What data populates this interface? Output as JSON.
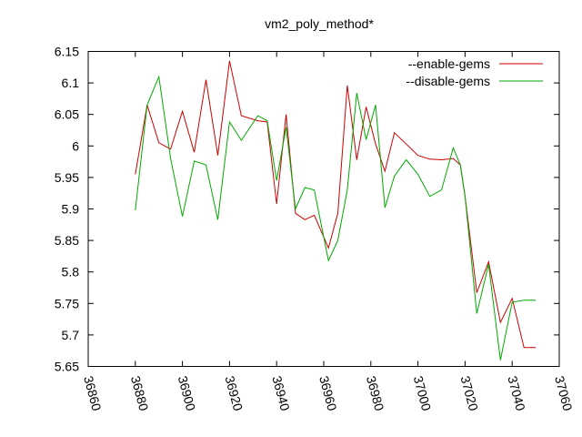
{
  "chart_data": {
    "type": "line",
    "title": "vm2_poly_method*",
    "xlabel": "",
    "ylabel": "",
    "xlim": [
      36860,
      37060
    ],
    "ylim": [
      5.65,
      6.15
    ],
    "x_ticks": [
      "36860",
      "36880",
      "36900",
      "36920",
      "36940",
      "36960",
      "36980",
      "37000",
      "37020",
      "37040",
      "37060"
    ],
    "y_ticks": [
      "5.65",
      "5.7",
      "5.75",
      "5.8",
      "5.85",
      "5.9",
      "5.95",
      "6",
      "6.05",
      "6.1",
      "6.15"
    ],
    "grid": false,
    "legend_position": "top-right",
    "series": [
      {
        "name": "--enable-gems",
        "color": "#cc0000",
        "x": [
          36880,
          36885,
          36890,
          36895,
          36900,
          36905,
          36910,
          36915,
          36920,
          36925,
          36932,
          36936,
          36940,
          36944,
          36948,
          36952,
          36956,
          36962,
          36966,
          36970,
          36974,
          36978,
          36982,
          36986,
          36990,
          36995,
          37000,
          37005,
          37010,
          37015,
          37018,
          37020,
          37025,
          37030,
          37035,
          37040,
          37045,
          37050
        ],
        "y": [
          5.955,
          6.065,
          6.005,
          5.995,
          6.055,
          5.99,
          6.105,
          5.985,
          6.135,
          6.048,
          6.04,
          6.038,
          5.908,
          6.05,
          5.893,
          5.883,
          5.89,
          5.838,
          5.893,
          6.096,
          5.978,
          6.062,
          6.003,
          5.96,
          6.021,
          6.003,
          5.985,
          5.979,
          5.978,
          5.98,
          5.97,
          5.92,
          5.767,
          5.816,
          5.72,
          5.758,
          5.68,
          5.68
        ]
      },
      {
        "name": "--disable-gems",
        "color": "#00aa00",
        "x": [
          36880,
          36885,
          36890,
          36895,
          36900,
          36905,
          36910,
          36915,
          36920,
          36925,
          36932,
          36936,
          36940,
          36944,
          36948,
          36952,
          36956,
          36962,
          36966,
          36970,
          36974,
          36978,
          36982,
          36986,
          36990,
          36995,
          37000,
          37005,
          37010,
          37015,
          37018,
          37020,
          37025,
          37030,
          37035,
          37040,
          37045,
          37050
        ],
        "y": [
          5.898,
          6.065,
          6.11,
          5.98,
          5.888,
          5.976,
          5.97,
          5.883,
          6.038,
          6.009,
          6.048,
          6.04,
          5.945,
          6.03,
          5.9,
          5.934,
          5.93,
          5.818,
          5.85,
          5.93,
          6.084,
          6.01,
          6.065,
          5.902,
          5.952,
          5.978,
          5.955,
          5.92,
          5.93,
          5.997,
          5.97,
          5.92,
          5.734,
          5.812,
          5.66,
          5.752,
          5.755,
          5.755
        ]
      }
    ]
  }
}
